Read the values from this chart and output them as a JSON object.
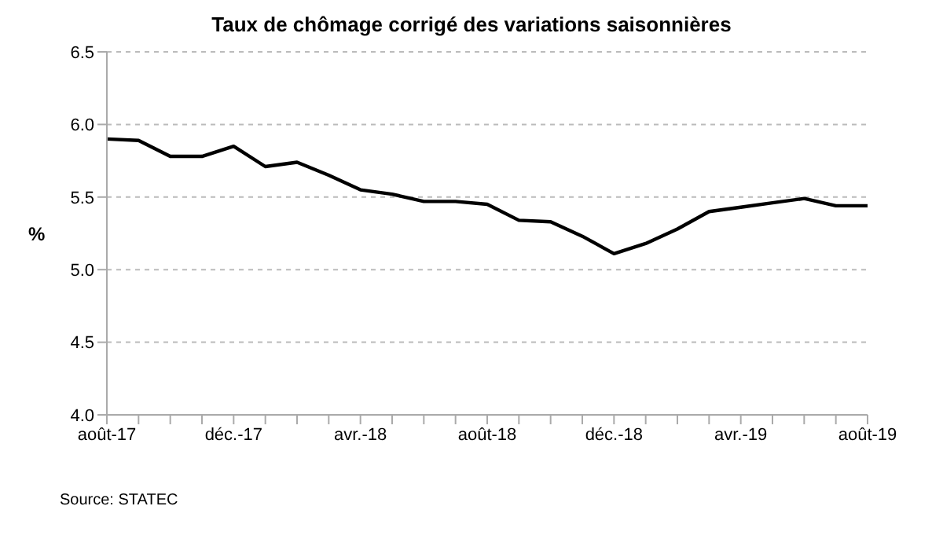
{
  "chart_data": {
    "type": "line",
    "title": "Taux de chômage corrigé des variations saisonnières",
    "ylabel": "%",
    "categories": [
      "août-17",
      null,
      null,
      null,
      "déc.-17",
      null,
      null,
      null,
      "avr.-18",
      null,
      null,
      null,
      "août-18",
      null,
      null,
      null,
      "déc.-18",
      null,
      null,
      null,
      "avr.-19",
      null,
      null,
      null,
      "août-19"
    ],
    "series": [
      {
        "color": "#000000",
        "values": [
          5.9,
          5.89,
          5.78,
          5.78,
          5.85,
          5.71,
          5.74,
          5.65,
          5.55,
          5.52,
          5.47,
          5.47,
          5.45,
          5.34,
          5.33,
          5.23,
          5.11,
          5.18,
          5.28,
          5.4,
          5.43,
          5.46,
          5.49,
          5.44,
          5.44
        ]
      }
    ],
    "ylim": [
      4.0,
      6.5
    ],
    "yticks": [
      {
        "value": 4.0,
        "label": "4.0"
      },
      {
        "value": 4.5,
        "label": "4.5"
      },
      {
        "value": 5.0,
        "label": "5.0"
      },
      {
        "value": 5.5,
        "label": "5.5"
      },
      {
        "value": 6.0,
        "label": "6.0"
      },
      {
        "value": 6.5,
        "label": "6.5"
      }
    ],
    "grid": "y",
    "legend": false,
    "marker": "none",
    "line_style": "solid",
    "annotations": [
      "Source: STATEC"
    ]
  }
}
